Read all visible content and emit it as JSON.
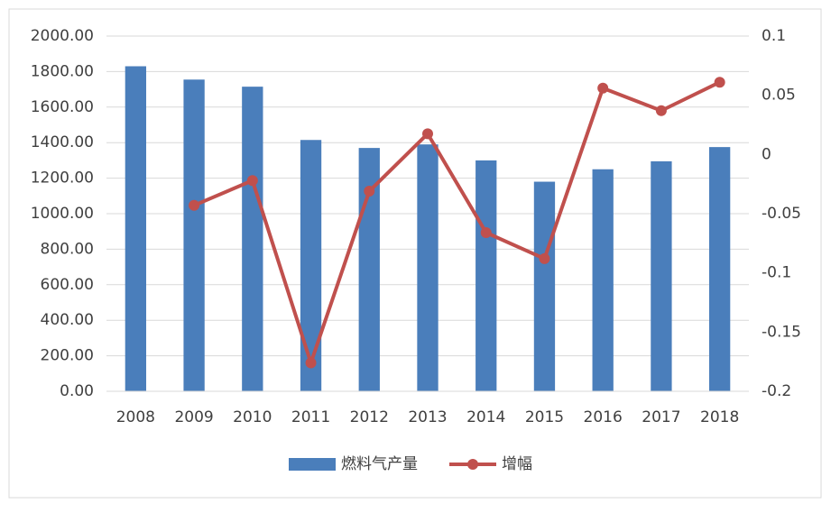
{
  "chart_data": {
    "type": "combo",
    "categories": [
      "2008",
      "2009",
      "2010",
      "2011",
      "2012",
      "2013",
      "2014",
      "2015",
      "2016",
      "2017",
      "2018"
    ],
    "series": [
      {
        "name": "燃料气产量",
        "type": "bar",
        "color": "#4a7ebb",
        "values": [
          1830,
          1755,
          1715,
          1415,
          1370,
          1390,
          1300,
          1180,
          1250,
          1295,
          1375
        ]
      },
      {
        "name": "增幅",
        "type": "line",
        "axis": "y2",
        "color": "#c0504d",
        "values": [
          null,
          -0.043,
          -0.022,
          -0.176,
          -0.031,
          0.0175,
          -0.066,
          -0.088,
          0.056,
          0.037,
          0.061
        ]
      }
    ],
    "ylim": [
      0,
      2000
    ],
    "yticks": [
      {
        "value": 0,
        "label": "0.00"
      },
      {
        "value": 200,
        "label": "200.00"
      },
      {
        "value": 400,
        "label": "400.00"
      },
      {
        "value": 600,
        "label": "600.00"
      },
      {
        "value": 800,
        "label": "800.00"
      },
      {
        "value": 1000,
        "label": "1000.00"
      },
      {
        "value": 1200,
        "label": "1200.00"
      },
      {
        "value": 1400,
        "label": "1400.00"
      },
      {
        "value": 1600,
        "label": "1600.00"
      },
      {
        "value": 1800,
        "label": "1800.00"
      },
      {
        "value": 2000,
        "label": "2000.00"
      }
    ],
    "y2lim": [
      -0.2,
      0.1
    ],
    "y2ticks": [
      -0.2,
      -0.15,
      -0.1,
      -0.05,
      0,
      0.05,
      0.1
    ],
    "grid": true,
    "legend": "bottom"
  }
}
